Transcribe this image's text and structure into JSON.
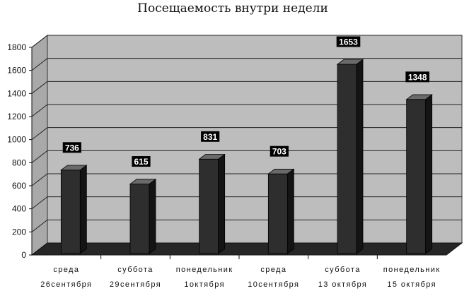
{
  "chart_data": {
    "type": "bar",
    "title": "Посещаемость внутри недели",
    "categories": [
      [
        "среда",
        "26сентября"
      ],
      [
        "суббота",
        "29сентября"
      ],
      [
        "понедельник",
        "1октября"
      ],
      [
        "среда",
        "10сентября"
      ],
      [
        "суббота",
        "13 октября"
      ],
      [
        "понедельник",
        "15 октября"
      ]
    ],
    "values": [
      736,
      615,
      831,
      703,
      1653,
      1348
    ],
    "data_labels": [
      "736",
      "615",
      "831",
      "703",
      "1653",
      "1348"
    ],
    "yticks": [
      0,
      200,
      400,
      600,
      800,
      1000,
      1200,
      1400,
      1600,
      1800
    ],
    "ylim": [
      0,
      1800
    ],
    "grid": true,
    "legend": "none",
    "style": "3d-column",
    "colors": {
      "bar": "#2e2e2e",
      "wall": "#bdbdbd",
      "floor": "#262626",
      "label_bg": "#000000"
    }
  }
}
